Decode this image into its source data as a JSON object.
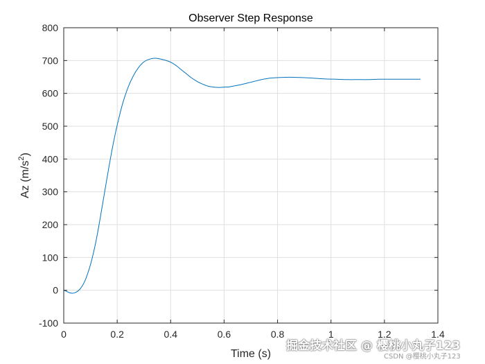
{
  "chart_data": {
    "type": "line",
    "title": "Observer Step Response",
    "xlabel": "Time (s)",
    "ylabel_main": "Az (m/s",
    "ylabel_sup": "2",
    "ylabel_close": ")",
    "xlim": [
      0,
      1.4
    ],
    "ylim": [
      -100,
      800
    ],
    "xticks": [
      0,
      0.2,
      0.4,
      0.6,
      0.8,
      1,
      1.2,
      1.4
    ],
    "xtick_labels": [
      "0",
      "0.2",
      "0.4",
      "0.6",
      "0.8",
      "1",
      "1.2",
      "1.4"
    ],
    "yticks": [
      -100,
      0,
      100,
      200,
      300,
      400,
      500,
      600,
      700,
      800
    ],
    "ytick_labels": [
      "-100",
      "0",
      "100",
      "200",
      "300",
      "400",
      "500",
      "600",
      "700",
      "800"
    ],
    "grid": true,
    "line_color": "#0072bd",
    "series": [
      {
        "x": [
          0,
          0.01,
          0.02,
          0.03,
          0.04,
          0.05,
          0.06,
          0.07,
          0.08,
          0.09,
          0.1,
          0.11,
          0.12,
          0.13,
          0.14,
          0.15,
          0.16,
          0.17,
          0.18,
          0.19,
          0.2,
          0.22,
          0.24,
          0.26,
          0.28,
          0.3,
          0.32,
          0.34,
          0.36,
          0.37,
          0.38,
          0.4,
          0.42,
          0.44,
          0.46,
          0.48,
          0.5,
          0.52,
          0.54,
          0.56,
          0.58,
          0.6,
          0.62,
          0.64,
          0.66,
          0.68,
          0.7,
          0.72,
          0.74,
          0.76,
          0.78,
          0.8,
          0.83,
          0.86,
          0.9,
          0.94,
          0.98,
          1.02,
          1.06,
          1.1,
          1.14,
          1.18,
          1.22,
          1.26,
          1.3,
          1.335
        ],
        "y": [
          0,
          -3,
          -7,
          -9,
          -8,
          -4,
          3,
          14,
          30,
          52,
          78,
          110,
          147,
          190,
          237,
          285,
          333,
          380,
          425,
          466,
          503,
          568,
          617,
          653,
          679,
          696,
          704,
          707,
          705,
          703,
          701,
          695,
          685,
          672,
          659,
          646,
          636,
          628,
          622,
          619,
          618,
          619,
          620,
          623,
          626,
          630,
          634,
          638,
          642,
          645,
          647,
          648,
          649,
          649,
          648,
          646,
          644,
          643,
          642,
          642,
          642,
          643,
          643,
          643,
          643,
          643
        ]
      }
    ]
  },
  "watermark": {
    "main": "掘金技术社区 @ 樱桃小丸子123",
    "sub": "CSDN @樱桃小丸子123"
  }
}
